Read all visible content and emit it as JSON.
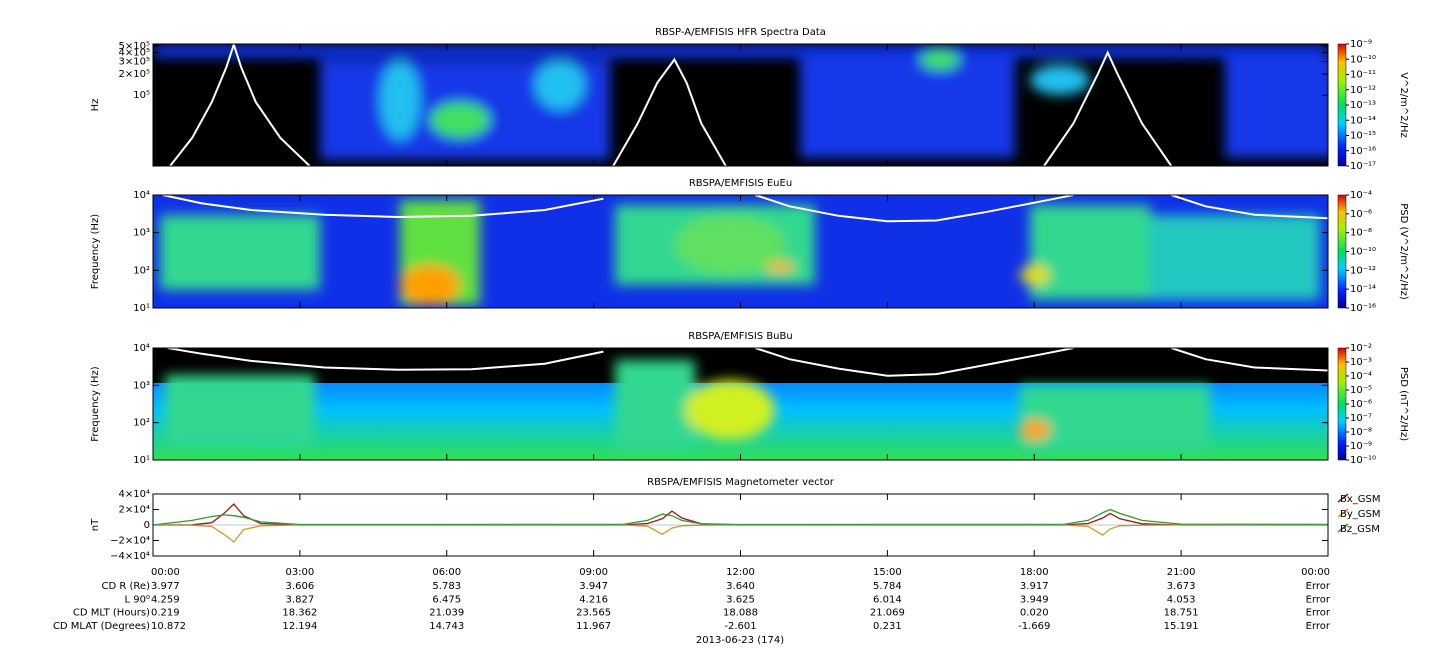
{
  "chart_data": [
    {
      "type": "heatmap",
      "title": "RBSP-A/EMFISIS  HFR Spectra Data",
      "ylabel": "Hz",
      "ylog": true,
      "ylim": [
        10000,
        530000
      ],
      "yticks": [
        {
          "value": 100000,
          "label": "10⁵"
        },
        {
          "value": 200000,
          "label": "2×10⁵"
        },
        {
          "value": 300000,
          "label": "3×10⁵"
        },
        {
          "value": 400000,
          "label": "4×10⁵"
        },
        {
          "value": 500000,
          "label": "5×10⁵"
        }
      ],
      "colorbar": {
        "label": "V^2/m^2/Hz",
        "lim": [
          1e-17,
          1e-09
        ],
        "ticks": [
          {
            "value": 1e-09,
            "label": "10⁻⁹"
          },
          {
            "value": 1e-10,
            "label": "10⁻¹⁰"
          },
          {
            "value": 1e-11,
            "label": "10⁻¹¹"
          },
          {
            "value": 1e-12,
            "label": "10⁻¹²"
          },
          {
            "value": 1e-13,
            "label": "10⁻¹³"
          },
          {
            "value": 1e-14,
            "label": "10⁻¹⁴"
          },
          {
            "value": 1e-15,
            "label": "10⁻¹⁵"
          },
          {
            "value": 1e-16,
            "label": "10⁻¹⁶"
          },
          {
            "value": 1e-17,
            "label": "10⁻¹⁷"
          }
        ]
      },
      "series": [
        {
          "color": "#ffffff",
          "x": [
            0.35,
            0.8,
            1.2,
            1.5,
            1.65,
            1.8,
            2.1,
            2.6,
            3.2,
            6,
            9.4,
            9.9,
            10.3,
            10.65,
            10.9,
            11.2,
            11.7,
            15,
            18.2,
            18.8,
            19.3,
            19.5,
            19.7,
            20.2,
            20.8
          ],
          "values": [
            10000,
            25000,
            80000,
            250000,
            520000,
            250000,
            80000,
            25000,
            10000,
            null,
            10000,
            40000,
            150000,
            320000,
            150000,
            40000,
            10000,
            null,
            10000,
            40000,
            200000,
            400000,
            200000,
            40000,
            10000
          ]
        }
      ]
    },
    {
      "type": "heatmap",
      "title": "RBSPA/EMFISIS  EuEu",
      "ylabel": "Frequency (Hz)",
      "ylog": true,
      "ylim": [
        10,
        10000
      ],
      "yticks": [
        {
          "value": 10,
          "label": "10¹"
        },
        {
          "value": 100,
          "label": "10²"
        },
        {
          "value": 1000,
          "label": "10³"
        },
        {
          "value": 10000,
          "label": "10⁴"
        }
      ],
      "colorbar": {
        "label": "PSD (V^2/m^2/Hz)",
        "lim": [
          1e-16,
          0.0001
        ],
        "ticks": [
          {
            "value": 0.0001,
            "label": "10⁻⁴"
          },
          {
            "value": 1e-06,
            "label": "10⁻⁶"
          },
          {
            "value": 1e-08,
            "label": "10⁻⁸"
          },
          {
            "value": 1e-10,
            "label": "10⁻¹⁰"
          },
          {
            "value": 1e-12,
            "label": "10⁻¹²"
          },
          {
            "value": 1e-14,
            "label": "10⁻¹⁴"
          },
          {
            "value": 1e-16,
            "label": "10⁻¹⁶"
          }
        ]
      },
      "series": [
        {
          "color": "#ffffff",
          "x": [
            0.2,
            1,
            2,
            3.5,
            5,
            6.5,
            8,
            9.2,
            11,
            12.3,
            13,
            14,
            15,
            16,
            17,
            18.2,
            18.8,
            19.8,
            20.8,
            21.5,
            22.5,
            24
          ],
          "values": [
            10000,
            6000,
            4000,
            3000,
            2600,
            2800,
            4000,
            8000,
            null,
            10000,
            5000,
            2800,
            2000,
            2100,
            3500,
            7000,
            10000,
            null,
            10000,
            5000,
            3000,
            2400
          ]
        }
      ]
    },
    {
      "type": "heatmap",
      "title": "RBSPA/EMFISIS  BuBu",
      "ylabel": "Frequency (Hz)",
      "ylog": true,
      "ylim": [
        10,
        10000
      ],
      "yticks": [
        {
          "value": 10,
          "label": "10¹"
        },
        {
          "value": 100,
          "label": "10²"
        },
        {
          "value": 1000,
          "label": "10³"
        },
        {
          "value": 10000,
          "label": "10⁴"
        }
      ],
      "colorbar": {
        "label": "PSD (nT^2/Hz)",
        "lim": [
          1e-10,
          0.01
        ],
        "ticks": [
          {
            "value": 0.01,
            "label": "10⁻²"
          },
          {
            "value": 0.001,
            "label": "10⁻³"
          },
          {
            "value": 0.0001,
            "label": "10⁻⁴"
          },
          {
            "value": 1e-05,
            "label": "10⁻⁵"
          },
          {
            "value": 1e-06,
            "label": "10⁻⁶"
          },
          {
            "value": 1e-07,
            "label": "10⁻⁷"
          },
          {
            "value": 1e-08,
            "label": "10⁻⁸"
          },
          {
            "value": 1e-09,
            "label": "10⁻⁹"
          },
          {
            "value": 1e-10,
            "label": "10⁻¹⁰"
          }
        ]
      },
      "series": [
        {
          "color": "#ffffff",
          "x": [
            0.3,
            1,
            2,
            3.5,
            5,
            6.5,
            8,
            9.2,
            11,
            12.3,
            13,
            14,
            15,
            16,
            17,
            18.2,
            18.8,
            19.8,
            20.8,
            21.5,
            22.5,
            24
          ],
          "values": [
            10000,
            7000,
            4500,
            3000,
            2600,
            2700,
            3800,
            8000,
            null,
            10000,
            5000,
            2800,
            1800,
            2000,
            3500,
            7000,
            10000,
            null,
            10000,
            5000,
            3000,
            2500
          ]
        }
      ]
    },
    {
      "type": "line",
      "title": "RBSPA/EMFISIS  Magnetometer vector",
      "ylabel": "nT",
      "ylim": [
        -40000,
        40000
      ],
      "yticks": [
        {
          "value": -40000,
          "label": "−4×10⁴"
        },
        {
          "value": -20000,
          "label": "−2×10⁴"
        },
        0,
        {
          "value": 20000,
          "label": "2×10⁴"
        },
        {
          "value": 40000,
          "label": "4×10⁴"
        }
      ],
      "xlim": [
        0,
        24
      ],
      "xticks": [
        {
          "value": 0,
          "label": "00:00"
        },
        {
          "value": 3,
          "label": "03:00"
        },
        {
          "value": 6,
          "label": "06:00"
        },
        {
          "value": 9,
          "label": "09:00"
        },
        {
          "value": 12,
          "label": "12:00"
        },
        {
          "value": 15,
          "label": "15:00"
        },
        {
          "value": 18,
          "label": "18:00"
        },
        {
          "value": 21,
          "label": "21:00"
        },
        {
          "value": 24,
          "label": "00:00"
        }
      ],
      "x": [
        0,
        0.8,
        1.2,
        1.45,
        1.65,
        1.85,
        2.2,
        3,
        9.6,
        10.1,
        10.4,
        10.6,
        10.8,
        11.2,
        12,
        18.6,
        19.1,
        19.4,
        19.55,
        19.75,
        20.2,
        21,
        24
      ],
      "series": [
        {
          "name": "Bx_GSM",
          "color": "#a01818",
          "values": [
            0,
            300,
            3000,
            15000,
            27000,
            12000,
            2000,
            0,
            0,
            2000,
            8000,
            18000,
            9000,
            1500,
            0,
            0,
            2000,
            9000,
            15000,
            8000,
            1500,
            0,
            0
          ]
        },
        {
          "name": "By_GSM",
          "color": "#c8a020",
          "values": [
            0,
            -200,
            -2000,
            -12000,
            -22000,
            -6000,
            -1000,
            0,
            0,
            -1500,
            -12000,
            -4000,
            -1000,
            -300,
            0,
            0,
            -2000,
            -13000,
            -5000,
            -1000,
            -300,
            0,
            0
          ]
        },
        {
          "name": "Bz_GSM",
          "color": "#2e9a2e",
          "values": [
            0,
            6000,
            11000,
            13000,
            12000,
            10000,
            4000,
            600,
            800,
            6000,
            14000,
            12000,
            6000,
            1500,
            600,
            800,
            6000,
            16000,
            20000,
            15000,
            6000,
            1200,
            800
          ]
        }
      ]
    }
  ],
  "footer": {
    "date": "2013-06-23 (174)",
    "ephemeris": [
      {
        "label": "CD R (Re)",
        "values": [
          "3.977",
          "3.606",
          "5.783",
          "3.947",
          "3.640",
          "5.784",
          "3.917",
          "3.673",
          "Error"
        ]
      },
      {
        "label": "L 90⁰",
        "values": [
          "4.259",
          "3.827",
          "6.475",
          "4.216",
          "3.625",
          "6.014",
          "3.949",
          "4.053",
          "Error"
        ]
      },
      {
        "label": "CD MLT (Hours)",
        "values": [
          "0.219",
          "18.362",
          "21.039",
          "23.565",
          "18.088",
          "21.069",
          "0.020",
          "18.751",
          "Error"
        ]
      },
      {
        "label": "CD MLAT (Degrees)",
        "values": [
          "10.872",
          "12.194",
          "14.743",
          "11.967",
          "-2.601",
          "0.231",
          "-1.669",
          "15.191",
          "Error"
        ]
      }
    ]
  }
}
